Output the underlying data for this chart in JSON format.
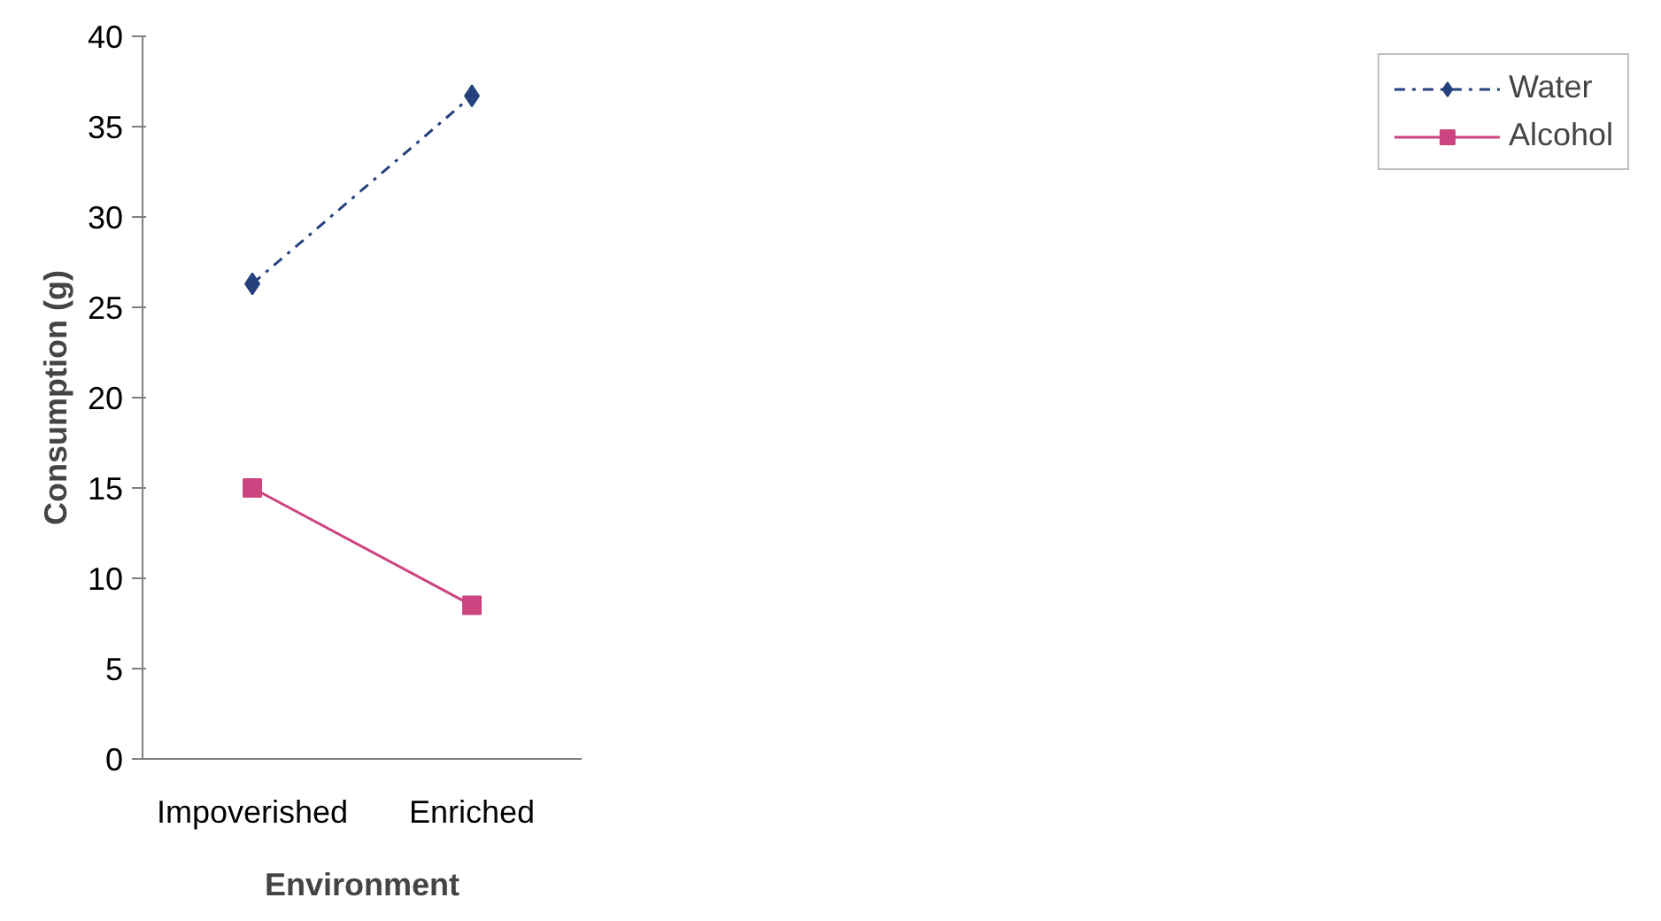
{
  "chart_data": {
    "type": "line",
    "xlabel": "Environment",
    "ylabel": "Consumption (g)",
    "categories": [
      "Impoverished",
      "Enriched"
    ],
    "series": [
      {
        "name": "Water",
        "color": "#25427e",
        "values": [
          26.3,
          36.7
        ],
        "marker": "diamond",
        "line_style": "dashdot"
      },
      {
        "name": "Alcohol",
        "color": "#cc4480",
        "values": [
          15.0,
          8.5
        ],
        "marker": "square",
        "line_style": "solid"
      }
    ],
    "ylim": [
      0,
      40
    ],
    "yticks": [
      0,
      5,
      10,
      15,
      20,
      25,
      30,
      35,
      40
    ],
    "grid": false,
    "legend": "right"
  }
}
